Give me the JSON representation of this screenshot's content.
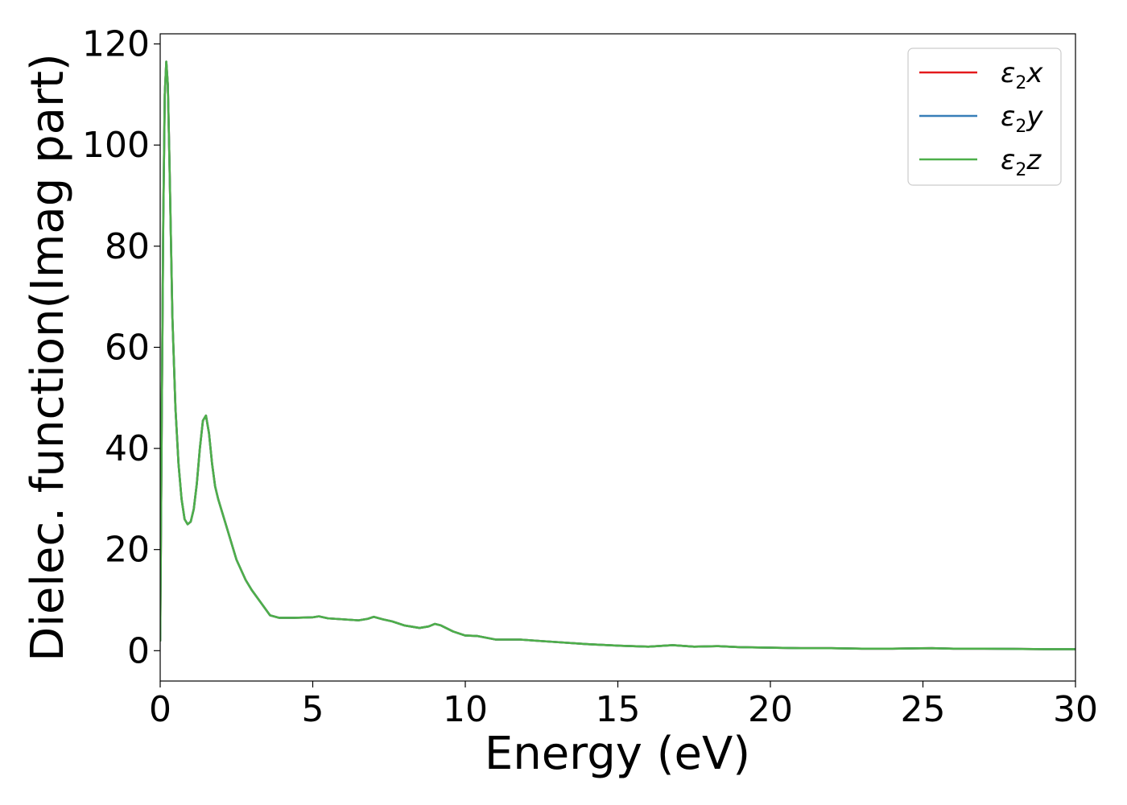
{
  "chart_data": {
    "type": "line",
    "title": "",
    "xlabel": "Energy (eV)",
    "ylabel": "Dielec. function(Imag part)",
    "xlim": [
      0,
      30
    ],
    "ylim": [
      -6,
      122
    ],
    "xticks": [
      0,
      5,
      10,
      15,
      20,
      25,
      30
    ],
    "yticks": [
      0,
      20,
      40,
      60,
      80,
      100,
      120
    ],
    "grid": false,
    "legend_position": "top-right",
    "series": [
      {
        "name": "ε₂x",
        "legend_main": "ε",
        "legend_sub": "2",
        "legend_tail": "x",
        "color": "#e41a1c",
        "x": [
          0,
          0.05,
          0.1,
          0.15,
          0.2,
          0.25,
          0.3,
          0.35,
          0.4,
          0.5,
          0.6,
          0.7,
          0.8,
          0.9,
          1.0,
          1.1,
          1.2,
          1.3,
          1.4,
          1.5,
          1.6,
          1.7,
          1.8,
          1.9,
          2.0,
          2.2,
          2.5,
          2.8,
          3.0,
          3.3,
          3.6,
          3.9,
          4.1,
          4.4,
          5.0,
          5.2,
          5.5,
          6.0,
          6.5,
          6.8,
          7.0,
          7.3,
          7.6,
          8.0,
          8.5,
          8.8,
          9.0,
          9.2,
          9.6,
          10.0,
          10.4,
          11.0,
          11.8,
          12.5,
          13.0,
          14.0,
          15.0,
          16.0,
          16.8,
          17.5,
          18.3,
          19.0,
          20.0,
          21.0,
          22.0,
          23.0,
          24.0,
          25.3,
          26.0,
          27.0,
          28.0,
          29.0,
          30.0
        ],
        "values": [
          2.0,
          45.0,
          85.0,
          110.0,
          116.5,
          112.0,
          98.0,
          82.0,
          66.0,
          48.0,
          37.0,
          30.0,
          26.0,
          25.0,
          25.5,
          28.0,
          33.0,
          40.0,
          45.5,
          46.5,
          43.0,
          37.0,
          32.5,
          30.0,
          28.0,
          24.0,
          18.0,
          14.0,
          12.0,
          9.5,
          7.0,
          6.5,
          6.5,
          6.5,
          6.6,
          6.8,
          6.4,
          6.2,
          6.0,
          6.3,
          6.7,
          6.2,
          5.8,
          5.0,
          4.5,
          4.8,
          5.3,
          5.0,
          3.8,
          3.0,
          2.9,
          2.2,
          2.2,
          1.9,
          1.7,
          1.3,
          1.0,
          0.8,
          1.1,
          0.8,
          0.9,
          0.7,
          0.6,
          0.5,
          0.5,
          0.4,
          0.4,
          0.5,
          0.4,
          0.4,
          0.35,
          0.3,
          0.3
        ]
      },
      {
        "name": "ε₂y",
        "legend_main": "ε",
        "legend_sub": "2",
        "legend_tail": "y",
        "color": "#377eb8",
        "x": [
          0,
          0.05,
          0.1,
          0.15,
          0.2,
          0.25,
          0.3,
          0.35,
          0.4,
          0.5,
          0.6,
          0.7,
          0.8,
          0.9,
          1.0,
          1.1,
          1.2,
          1.3,
          1.4,
          1.5,
          1.6,
          1.7,
          1.8,
          1.9,
          2.0,
          2.2,
          2.5,
          2.8,
          3.0,
          3.3,
          3.6,
          3.9,
          4.1,
          4.4,
          5.0,
          5.2,
          5.5,
          6.0,
          6.5,
          6.8,
          7.0,
          7.3,
          7.6,
          8.0,
          8.5,
          8.8,
          9.0,
          9.2,
          9.6,
          10.0,
          10.4,
          11.0,
          11.8,
          12.5,
          13.0,
          14.0,
          15.0,
          16.0,
          16.8,
          17.5,
          18.3,
          19.0,
          20.0,
          21.0,
          22.0,
          23.0,
          24.0,
          25.3,
          26.0,
          27.0,
          28.0,
          29.0,
          30.0
        ],
        "values": [
          2.0,
          45.0,
          85.0,
          110.0,
          116.5,
          112.0,
          98.0,
          82.0,
          66.0,
          48.0,
          37.0,
          30.0,
          26.0,
          25.0,
          25.5,
          28.0,
          33.0,
          40.0,
          45.5,
          46.5,
          43.0,
          37.0,
          32.5,
          30.0,
          28.0,
          24.0,
          18.0,
          14.0,
          12.0,
          9.5,
          7.0,
          6.5,
          6.5,
          6.5,
          6.6,
          6.8,
          6.4,
          6.2,
          6.0,
          6.3,
          6.7,
          6.2,
          5.8,
          5.0,
          4.5,
          4.8,
          5.3,
          5.0,
          3.8,
          3.0,
          2.9,
          2.2,
          2.2,
          1.9,
          1.7,
          1.3,
          1.0,
          0.8,
          1.1,
          0.8,
          0.9,
          0.7,
          0.6,
          0.5,
          0.5,
          0.4,
          0.4,
          0.5,
          0.4,
          0.4,
          0.35,
          0.3,
          0.3
        ]
      },
      {
        "name": "ε₂z",
        "legend_main": "ε",
        "legend_sub": "2",
        "legend_tail": "z",
        "color": "#4daf4a",
        "x": [
          0,
          0.05,
          0.1,
          0.15,
          0.2,
          0.25,
          0.3,
          0.35,
          0.4,
          0.5,
          0.6,
          0.7,
          0.8,
          0.9,
          1.0,
          1.1,
          1.2,
          1.3,
          1.4,
          1.5,
          1.6,
          1.7,
          1.8,
          1.9,
          2.0,
          2.2,
          2.5,
          2.8,
          3.0,
          3.3,
          3.6,
          3.9,
          4.1,
          4.4,
          5.0,
          5.2,
          5.5,
          6.0,
          6.5,
          6.8,
          7.0,
          7.3,
          7.6,
          8.0,
          8.5,
          8.8,
          9.0,
          9.2,
          9.6,
          10.0,
          10.4,
          11.0,
          11.8,
          12.5,
          13.0,
          14.0,
          15.0,
          16.0,
          16.8,
          17.5,
          18.3,
          19.0,
          20.0,
          21.0,
          22.0,
          23.0,
          24.0,
          25.3,
          26.0,
          27.0,
          28.0,
          29.0,
          30.0
        ],
        "values": [
          2.0,
          45.0,
          85.0,
          110.0,
          116.5,
          112.0,
          98.0,
          82.0,
          66.0,
          48.0,
          37.0,
          30.0,
          26.0,
          25.0,
          25.5,
          28.0,
          33.0,
          40.0,
          45.5,
          46.5,
          43.0,
          37.0,
          32.5,
          30.0,
          28.0,
          24.0,
          18.0,
          14.0,
          12.0,
          9.5,
          7.0,
          6.5,
          6.5,
          6.5,
          6.6,
          6.8,
          6.4,
          6.2,
          6.0,
          6.3,
          6.7,
          6.2,
          5.8,
          5.0,
          4.5,
          4.8,
          5.3,
          5.0,
          3.8,
          3.0,
          2.9,
          2.2,
          2.2,
          1.9,
          1.7,
          1.3,
          1.0,
          0.8,
          1.1,
          0.8,
          0.9,
          0.7,
          0.6,
          0.5,
          0.5,
          0.4,
          0.4,
          0.5,
          0.4,
          0.4,
          0.35,
          0.3,
          0.3
        ]
      }
    ]
  }
}
